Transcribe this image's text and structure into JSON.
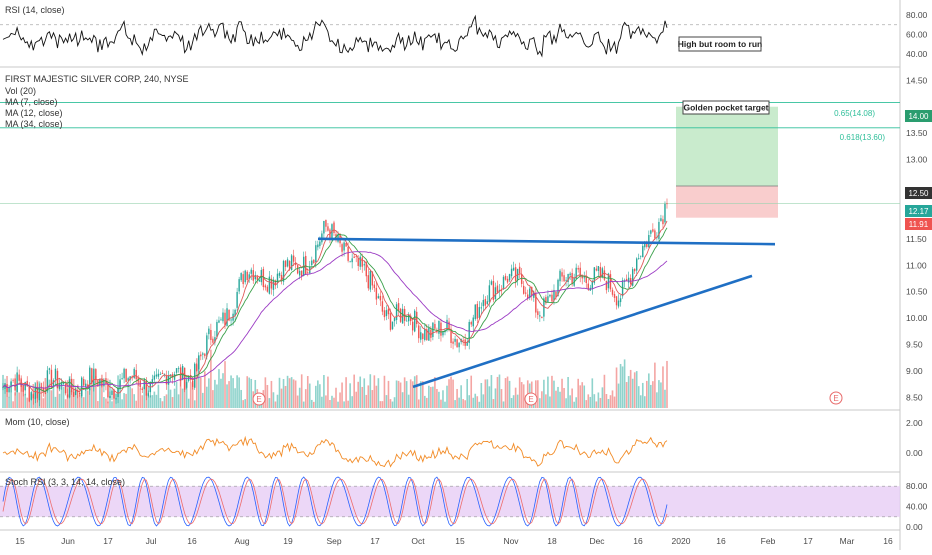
{
  "panels": {
    "rsi": {
      "legend": "RSI (14, close)",
      "ticks": [
        "80.00",
        "60.00",
        "40.00"
      ],
      "note": "High but room to run"
    },
    "price": {
      "legend": [
        "FIRST MAJESTIC SILVER CORP, 240, NYSE",
        "Vol (20)",
        "MA (7, close)",
        "MA (12, close)",
        "MA (34, close)"
      ],
      "ticks": [
        "14.50",
        "14.00",
        "13.50",
        "13.00",
        "12.50",
        "12.00",
        "11.50",
        "11.00",
        "10.50",
        "10.00",
        "9.50",
        "9.00",
        "8.50"
      ],
      "fib_labels": [
        "0.65(14.08)",
        "0.618(13.60)"
      ],
      "badges": [
        "14.00",
        "12.50",
        "12.17",
        "11.91"
      ],
      "note": "Golden pocket target",
      "earnings_marker": "E"
    },
    "mom": {
      "legend": "Mom (10, close)",
      "ticks": [
        "2.00",
        "0.00"
      ]
    },
    "stoch": {
      "legend": "Stoch RSI (3, 3, 14, 14, close)",
      "ticks": [
        "80.00",
        "40.00",
        "0.00"
      ]
    }
  },
  "colors": {
    "up": "#26a69a",
    "down": "#ef5350",
    "vol_up": "#8fd3cc",
    "vol_down": "#f4a5a3",
    "ma7": "#e05a5a",
    "ma12": "#3aa04a",
    "ma34": "#9b3bc4",
    "trendline": "#1f6fc4",
    "fib": "#2fbf9a",
    "target_zone": "#bfe8c4",
    "stop_zone": "#f8c8c8",
    "mom": "#f28c28",
    "stoch_k": "#2962ff",
    "stoch_d": "#ef6c6c",
    "stoch_band": "#e7cdf5"
  },
  "x_axis": {
    "labels": [
      "15",
      "Jun",
      "17",
      "Jul",
      "16",
      "Aug",
      "19",
      "Sep",
      "17",
      "Oct",
      "15",
      "Nov",
      "18",
      "Dec",
      "16",
      "2020",
      "16",
      "Feb",
      "17",
      "Mar",
      "16"
    ]
  },
  "chart_data": {
    "type": "line",
    "title": "FIRST MAJESTIC SILVER CORP, 240, NYSE",
    "ylim": [
      8.3,
      14.6
    ],
    "price_key_levels": {
      "fib_0.65": 14.08,
      "fib_0.618": 13.6,
      "target_zone": [
        12.5,
        14.0
      ],
      "stop_zone": [
        11.9,
        12.5
      ],
      "last": 12.17,
      "low_badge": 11.91
    },
    "approx_close_path": {
      "x": [
        "May 15",
        "Jun",
        "Jul",
        "Jul 16",
        "Aug",
        "Aug 19",
        "Aug 27",
        "Sep",
        "Sep 17",
        "Oct",
        "Oct 15",
        "Nov",
        "Nov 18",
        "Dec",
        "Dec 16",
        "Dec 20",
        "Dec 23"
      ],
      "values": [
        8.7,
        8.75,
        8.8,
        9.0,
        10.8,
        10.9,
        11.6,
        11.3,
        10.1,
        9.9,
        9.6,
        10.9,
        10.2,
        10.9,
        10.5,
        11.3,
        12.3
      ]
    },
    "resistance_line": [
      11.5,
      11.4
    ],
    "support_line": [
      8.7,
      10.8
    ],
    "rsi_range": [
      30,
      90
    ],
    "mom_range": [
      -1.0,
      2.6
    ],
    "stoch_range": [
      0,
      100
    ]
  }
}
